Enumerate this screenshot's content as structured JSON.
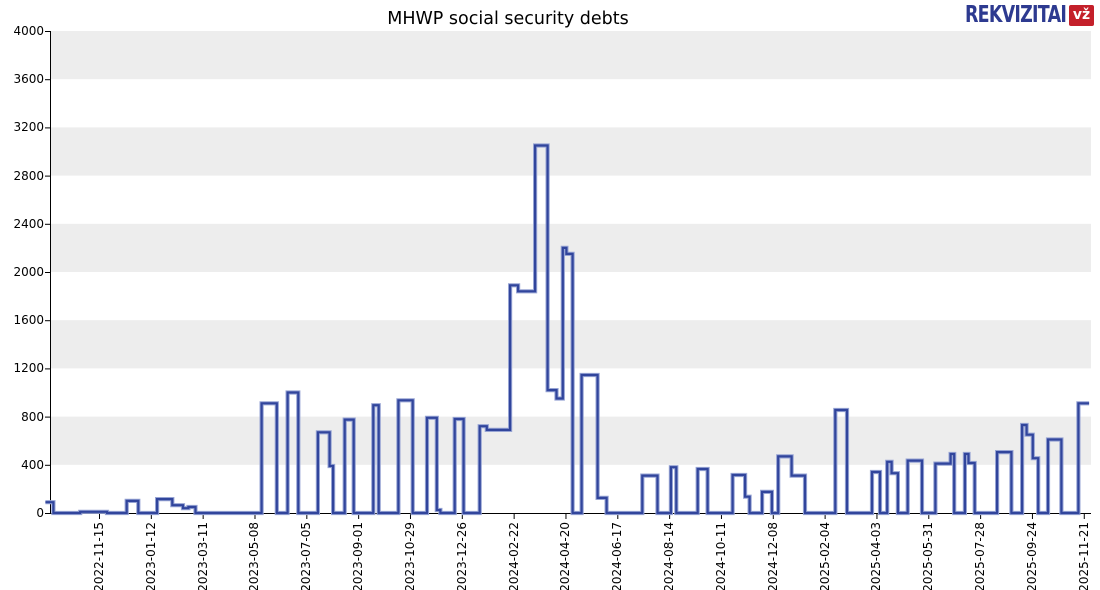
{
  "header": {
    "title": "MHWP social security debts",
    "logo": {
      "text": "REKVIZITAI",
      "badge": "vž",
      "blue": "#2d3a90",
      "red": "#c4202a"
    }
  },
  "chart_data": {
    "type": "line",
    "subtype": "step",
    "title": "MHWP social security debts",
    "xlabel": "",
    "ylabel": "",
    "ylim": [
      0,
      4000
    ],
    "y_ticks": [
      0,
      400,
      800,
      1200,
      1600,
      2000,
      2400,
      2800,
      3200,
      3600,
      4000
    ],
    "x_tick_labels": [
      "2022-11-15",
      "2023-01-12",
      "2023-03-11",
      "2023-05-08",
      "2023-07-05",
      "2023-09-01",
      "2023-10-29",
      "2023-12-26",
      "2024-02-22",
      "2024-04-20",
      "2024-06-17",
      "2024-08-14",
      "2024-10-11",
      "2024-12-08",
      "2025-02-04",
      "2025-04-03",
      "2025-05-31",
      "2025-07-28",
      "2025-09-24",
      "2025-11-21"
    ],
    "grid_bands": [
      [
        400,
        800
      ],
      [
        1200,
        1600
      ],
      [
        2000,
        2400
      ],
      [
        2800,
        3200
      ],
      [
        3600,
        4000
      ]
    ],
    "band_color": "#ededed",
    "axis_color": "#000000",
    "line_color": "#31459c",
    "line_halo_color": "#97a4d4",
    "legend": "none",
    "series": [
      {
        "name": "social security debt",
        "steps": [
          [
            "2022-09-16",
            90
          ],
          [
            "2022-09-25",
            0
          ],
          [
            "2022-10-25",
            10
          ],
          [
            "2022-11-24",
            0
          ],
          [
            "2022-12-16",
            100
          ],
          [
            "2022-12-29",
            0
          ],
          [
            "2023-01-19",
            115
          ],
          [
            "2023-02-05",
            65
          ],
          [
            "2023-02-17",
            40
          ],
          [
            "2023-02-23",
            50
          ],
          [
            "2023-03-03",
            0
          ],
          [
            "2023-05-16",
            910
          ],
          [
            "2023-06-02",
            0
          ],
          [
            "2023-06-14",
            1000
          ],
          [
            "2023-06-26",
            0
          ],
          [
            "2023-07-18",
            670
          ],
          [
            "2023-07-31",
            390
          ],
          [
            "2023-08-04",
            0
          ],
          [
            "2023-08-17",
            775
          ],
          [
            "2023-08-27",
            0
          ],
          [
            "2023-09-18",
            895
          ],
          [
            "2023-09-24",
            0
          ],
          [
            "2023-10-16",
            935
          ],
          [
            "2023-11-01",
            0
          ],
          [
            "2023-11-17",
            790
          ],
          [
            "2023-11-28",
            25
          ],
          [
            "2023-12-02",
            0
          ],
          [
            "2023-12-18",
            780
          ],
          [
            "2023-12-28",
            0
          ],
          [
            "2024-01-15",
            720
          ],
          [
            "2024-01-23",
            690
          ],
          [
            "2024-02-18",
            1890
          ],
          [
            "2024-02-27",
            1840
          ],
          [
            "2024-03-17",
            3050
          ],
          [
            "2024-03-31",
            1020
          ],
          [
            "2024-04-10",
            950
          ],
          [
            "2024-04-17",
            2200
          ],
          [
            "2024-04-21",
            2150
          ],
          [
            "2024-04-28",
            0
          ],
          [
            "2024-05-08",
            1145
          ],
          [
            "2024-05-26",
            125
          ],
          [
            "2024-06-05",
            0
          ],
          [
            "2024-07-15",
            310
          ],
          [
            "2024-08-01",
            0
          ],
          [
            "2024-08-16",
            380
          ],
          [
            "2024-08-22",
            0
          ],
          [
            "2024-09-15",
            365
          ],
          [
            "2024-09-26",
            0
          ],
          [
            "2024-10-24",
            315
          ],
          [
            "2024-11-07",
            135
          ],
          [
            "2024-11-12",
            0
          ],
          [
            "2024-11-26",
            175
          ],
          [
            "2024-12-07",
            0
          ],
          [
            "2024-12-14",
            470
          ],
          [
            "2024-12-29",
            310
          ],
          [
            "2025-01-13",
            0
          ],
          [
            "2025-02-16",
            855
          ],
          [
            "2025-03-01",
            0
          ],
          [
            "2025-03-29",
            340
          ],
          [
            "2025-04-07",
            0
          ],
          [
            "2025-04-15",
            425
          ],
          [
            "2025-04-20",
            330
          ],
          [
            "2025-04-27",
            0
          ],
          [
            "2025-05-08",
            435
          ],
          [
            "2025-05-24",
            0
          ],
          [
            "2025-06-08",
            410
          ],
          [
            "2025-06-25",
            490
          ],
          [
            "2025-06-29",
            0
          ],
          [
            "2025-07-11",
            490
          ],
          [
            "2025-07-15",
            415
          ],
          [
            "2025-07-22",
            0
          ],
          [
            "2025-08-16",
            505
          ],
          [
            "2025-09-01",
            0
          ],
          [
            "2025-09-13",
            730
          ],
          [
            "2025-09-18",
            650
          ],
          [
            "2025-09-25",
            455
          ],
          [
            "2025-10-01",
            0
          ],
          [
            "2025-10-12",
            610
          ],
          [
            "2025-10-27",
            0
          ],
          [
            "2025-11-15",
            910
          ]
        ],
        "end_date": "2025-11-27"
      }
    ]
  }
}
